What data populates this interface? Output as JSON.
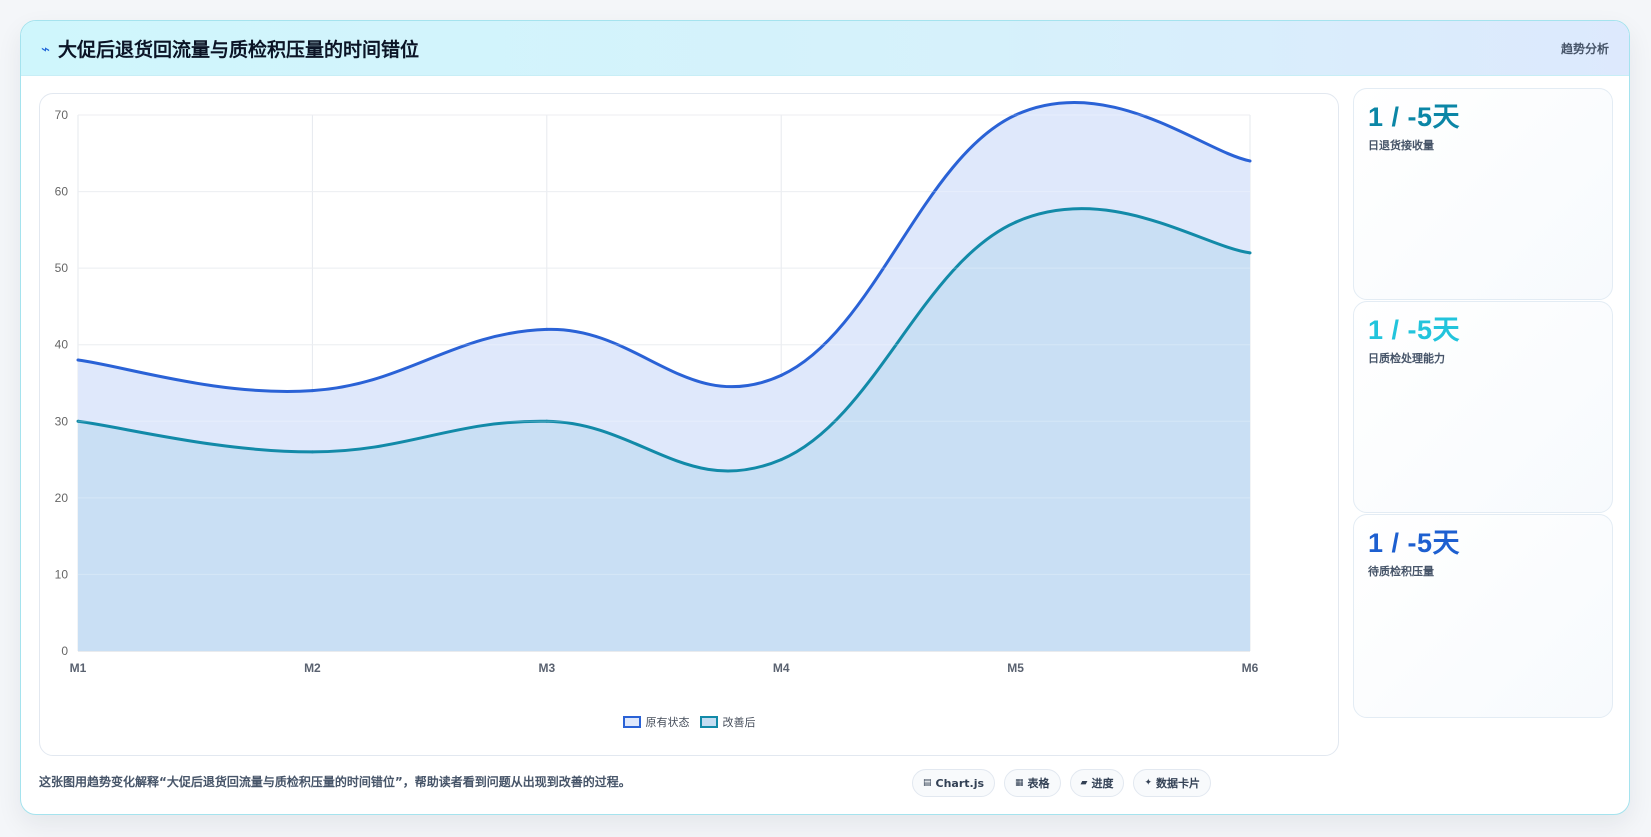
{
  "header": {
    "title": "大促后退货回流量与质检积压量的时间错位",
    "tag": "趋势分析"
  },
  "chart_data": {
    "type": "area",
    "categories": [
      "M1",
      "M2",
      "M3",
      "M4",
      "M5",
      "M6"
    ],
    "series": [
      {
        "name": "原有状态",
        "values": [
          38,
          34,
          42,
          36,
          70,
          64
        ],
        "color": "#2a62d6",
        "fill": "#dfe8fb"
      },
      {
        "name": "改善后",
        "values": [
          30,
          26,
          30,
          25,
          56,
          52
        ],
        "color": "#128aa8",
        "fill": "#c5ddf2"
      }
    ],
    "ylim": [
      0,
      70
    ],
    "yticks": [
      0,
      10,
      20,
      30,
      40,
      50,
      60,
      70
    ],
    "grid": true,
    "legend_position": "bottom"
  },
  "stats": [
    {
      "value": "1 / -5天",
      "label": "日退货接收量",
      "color": "#0b86a6"
    },
    {
      "value": "1 / -5天",
      "label": "日质检处理能力",
      "color": "#22c4dc"
    },
    {
      "value": "1 / -5天",
      "label": "待质检积压量",
      "color": "#1d5fd0"
    }
  ],
  "footer": {
    "note": "这张图用趋势变化解释“大促后退货回流量与质检积压量的时间错位”，帮助读者看到问题从出现到改善的过程。",
    "pills": [
      {
        "icon": "chart-icon",
        "glyph": "▤",
        "label": "Chart.js"
      },
      {
        "icon": "table-icon",
        "glyph": "▦",
        "label": "表格"
      },
      {
        "icon": "progress-icon",
        "glyph": "▰",
        "label": "进度"
      },
      {
        "icon": "sparkle-icon",
        "glyph": "✦",
        "label": "数据卡片"
      }
    ]
  }
}
